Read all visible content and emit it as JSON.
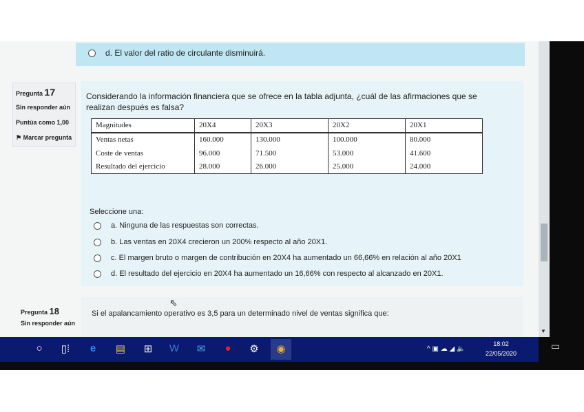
{
  "prev_option": {
    "label": "d. El valor del ratio de circulante disminuirá."
  },
  "q17": {
    "label": "Pregunta",
    "number": "17",
    "status": "Sin responder aún",
    "score": "Puntúa como 1,00",
    "flag": "Marcar pregunta",
    "text": "Considerando la información financiera que se ofrece en la tabla adjunta, ¿cuál de las afirmaciones que se realizan después es falsa?",
    "table": {
      "headers": [
        "Magnitudes",
        "20X4",
        "20X3",
        "20X2",
        "20X1"
      ],
      "rows": [
        [
          "Ventas netas",
          "160.000",
          "130.000",
          "100.000",
          "80.000"
        ],
        [
          "Coste de ventas",
          "96.000",
          "71.500",
          "53.000",
          "41.600"
        ],
        [
          "Resultado del ejercicio",
          "28.000",
          "26.000",
          "25.000",
          "24.000"
        ]
      ]
    },
    "select_label": "Seleccione una:",
    "options": [
      "a. Ninguna de las respuestas son correctas.",
      "b. Las ventas en 20X4 crecieron  un 200% respecto al año 20X1.",
      "c. El margen bruto o margen de contribución en 20X4 ha aumentado un 66,66% en relación al año  20X1",
      "d. El resultado del ejercicio en 20X4 ha aumentado un 16,66% con respecto al alcanzado en 20X1."
    ]
  },
  "q18": {
    "label": "Pregunta",
    "number": "18",
    "status": "Sin responder aún",
    "text": "Si el apalancamiento operativo es 3,5 para un determinado nivel de ventas significa que:"
  },
  "taskbar": {
    "time": "18:02",
    "date": "22/05/2020"
  }
}
